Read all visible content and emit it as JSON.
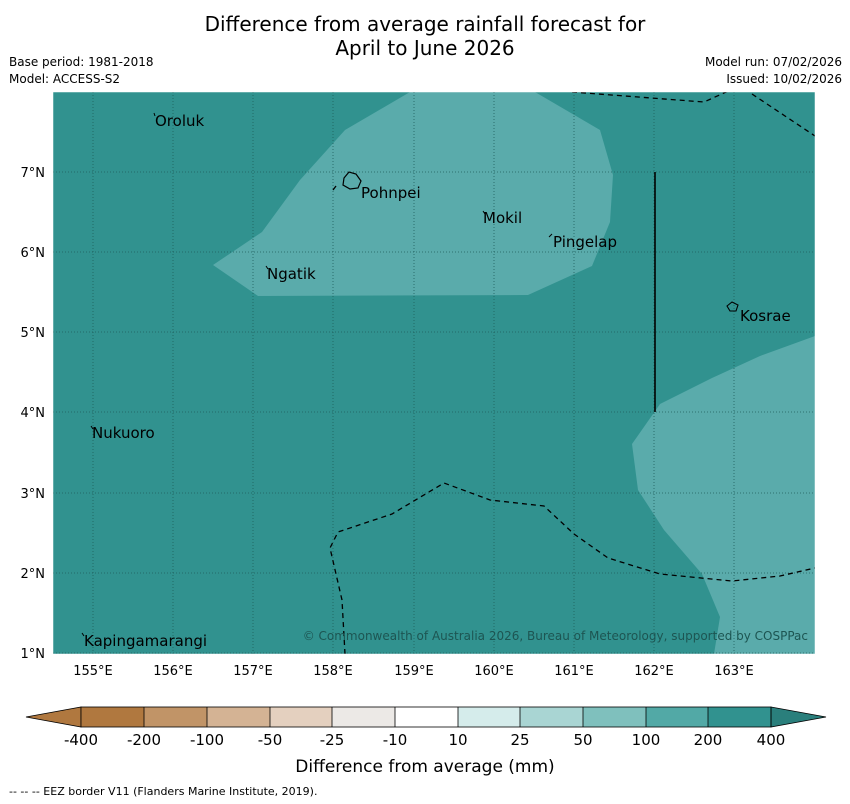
{
  "title": {
    "line1": "Difference from average rainfall forecast for",
    "line2": "April to June 2026"
  },
  "meta_left": {
    "base_period": "Base period: 1981-2018",
    "model": "Model: ACCESS-S2"
  },
  "meta_right": {
    "model_run": "Model run: 07/02/2026",
    "issued": "Issued: 10/02/2026"
  },
  "map": {
    "lon_labels": [
      "155°E",
      "156°E",
      "157°E",
      "158°E",
      "159°E",
      "160°E",
      "161°E",
      "162°E",
      "163°E"
    ],
    "lat_labels": [
      "7°N",
      "6°N",
      "5°N",
      "4°N",
      "3°N",
      "2°N",
      "1°N"
    ],
    "places": [
      "Oroluk",
      "Pohnpei",
      "Mokil",
      "Pingelap",
      "Ngatik",
      "Kosrae",
      "Nukuoro",
      "Kapingamarangi"
    ],
    "copyright": "© Commonwealth of Australia 2026, Bureau of Meteorology, supported by COSPPac"
  },
  "colorbar": {
    "tick_labels": [
      "-400",
      "-200",
      "-100",
      "-50",
      "-25",
      "-10",
      "10",
      "25",
      "50",
      "100",
      "200",
      "400"
    ],
    "colors": [
      "#b0783f",
      "#c19467",
      "#d4b394",
      "#e4d0bf",
      "#ece9e6",
      "#ffffff",
      "#d5eceb",
      "#a9d5d3",
      "#7fc0bd",
      "#52a9a6",
      "#31928f",
      "#2a7f7c"
    ],
    "label": "Difference from average (mm)"
  },
  "footer": "--  --  -- EEZ border V11 (Flanders Marine Institute, 2019)."
}
